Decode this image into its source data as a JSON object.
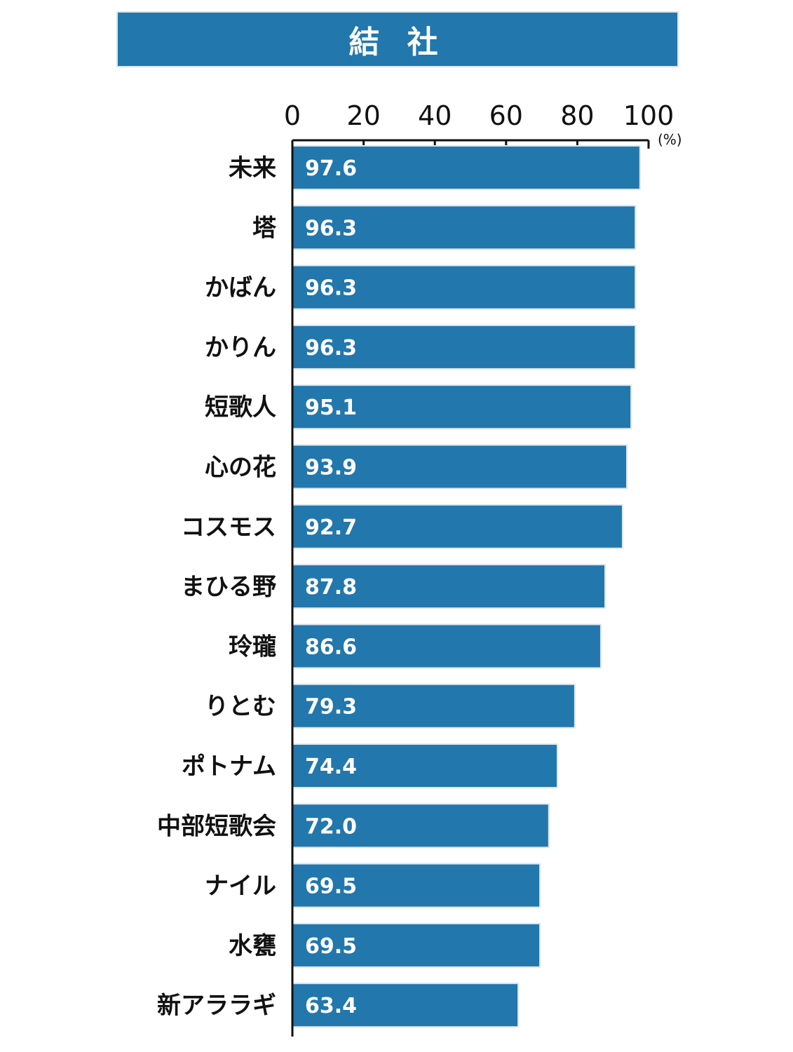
{
  "chart_data": {
    "type": "bar",
    "orientation": "horizontal",
    "title": "結 社",
    "unit": "(%)",
    "xlim": [
      0,
      100
    ],
    "ticks": [
      "0",
      "20",
      "40",
      "60",
      "80",
      "100"
    ],
    "bar_color": "#2277ad",
    "categories": [
      "未来",
      "塔",
      "かばん",
      "かりん",
      "短歌人",
      "心の花",
      "コスモス",
      "まひる野",
      "玲瓏",
      "りとむ",
      "ポトナム",
      "中部短歌会",
      "ナイル",
      "水甕",
      "新アララギ"
    ],
    "values": [
      97.6,
      96.3,
      96.3,
      96.3,
      95.1,
      93.9,
      92.7,
      87.8,
      86.6,
      79.3,
      74.4,
      72.0,
      69.5,
      69.5,
      63.4
    ],
    "value_labels": [
      "97.6",
      "96.3",
      "96.3",
      "96.3",
      "95.1",
      "93.9",
      "92.7",
      "87.8",
      "86.6",
      "79.3",
      "74.4",
      "72.0",
      "69.5",
      "69.5",
      "63.4"
    ]
  }
}
